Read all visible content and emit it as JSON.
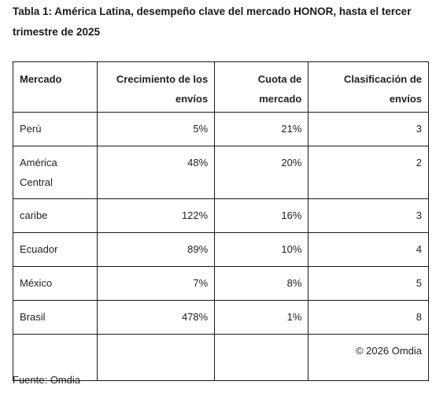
{
  "title": "Tabla 1: América Latina, desempeño clave del mercado HONOR, hasta el tercer trimestre de 2025",
  "table": {
    "headers": [
      "Mercado",
      "Crecimiento de los envíos",
      "Cuota de mercado",
      "Clasificación de envíos"
    ],
    "rows": [
      [
        "Perú",
        "5%",
        "21%",
        "3"
      ],
      [
        "América Central",
        "48%",
        "20%",
        "2"
      ],
      [
        "caribe",
        "122%",
        "16%",
        "3"
      ],
      [
        "Ecuador",
        "89%",
        "10%",
        "4"
      ],
      [
        "México",
        "7%",
        "8%",
        "5"
      ],
      [
        "Brasil",
        "478%",
        "1%",
        "8"
      ]
    ],
    "copyright": "© 2026 Omdia"
  },
  "source": "Fuente: Omdia"
}
